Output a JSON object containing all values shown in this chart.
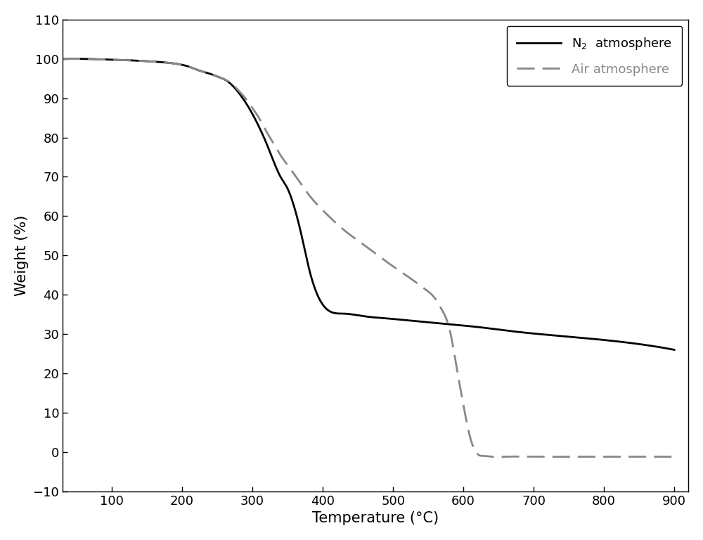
{
  "title": "",
  "xlabel": "Temperature (°C)",
  "ylabel": "Weight (%)",
  "xlim": [
    30,
    920
  ],
  "ylim": [
    -10,
    110
  ],
  "xticks": [
    100,
    200,
    300,
    400,
    500,
    600,
    700,
    800,
    900
  ],
  "yticks": [
    -10,
    0,
    10,
    20,
    30,
    40,
    50,
    60,
    70,
    80,
    90,
    100,
    110
  ],
  "n2_color": "#000000",
  "air_color": "#888888",
  "n2_label": "N$_2$  atmosphere",
  "air_label": "Air atmosphere",
  "n2_x": [
    30,
    60,
    100,
    130,
    160,
    190,
    210,
    225,
    240,
    250,
    260,
    270,
    280,
    290,
    300,
    310,
    320,
    330,
    340,
    350,
    360,
    370,
    380,
    400,
    430,
    460,
    490,
    520,
    550,
    580,
    620,
    680,
    740,
    800,
    860,
    900
  ],
  "n2_y": [
    100,
    100,
    99.8,
    99.6,
    99.3,
    98.8,
    98.0,
    97.0,
    96.2,
    95.5,
    94.8,
    93.5,
    91.5,
    89.0,
    86.0,
    82.5,
    78.5,
    74.0,
    70.0,
    67.0,
    62.0,
    55.0,
    47.0,
    37.5,
    35.2,
    34.5,
    34.0,
    33.5,
    33.0,
    32.5,
    31.8,
    30.5,
    29.5,
    28.5,
    27.2,
    26.0
  ],
  "air_x": [
    30,
    60,
    100,
    130,
    160,
    190,
    210,
    225,
    240,
    250,
    260,
    270,
    280,
    290,
    300,
    310,
    320,
    330,
    340,
    350,
    360,
    370,
    380,
    400,
    430,
    460,
    490,
    510,
    530,
    545,
    560,
    570,
    580,
    590,
    600,
    610,
    620,
    630,
    640,
    660,
    700,
    750,
    800,
    850,
    900
  ],
  "air_y": [
    100,
    100,
    99.8,
    99.6,
    99.3,
    98.8,
    98.0,
    97.0,
    96.2,
    95.5,
    94.8,
    93.8,
    92.0,
    90.0,
    87.5,
    84.8,
    81.5,
    78.5,
    75.5,
    73.0,
    70.5,
    68.0,
    65.5,
    61.5,
    56.5,
    52.5,
    48.5,
    46.0,
    43.5,
    41.5,
    39.0,
    36.0,
    31.5,
    22.0,
    12.0,
    3.5,
    -0.5,
    -1.0,
    -1.2,
    -1.2,
    -1.2,
    -1.2,
    -1.2,
    -1.2,
    -1.2
  ]
}
